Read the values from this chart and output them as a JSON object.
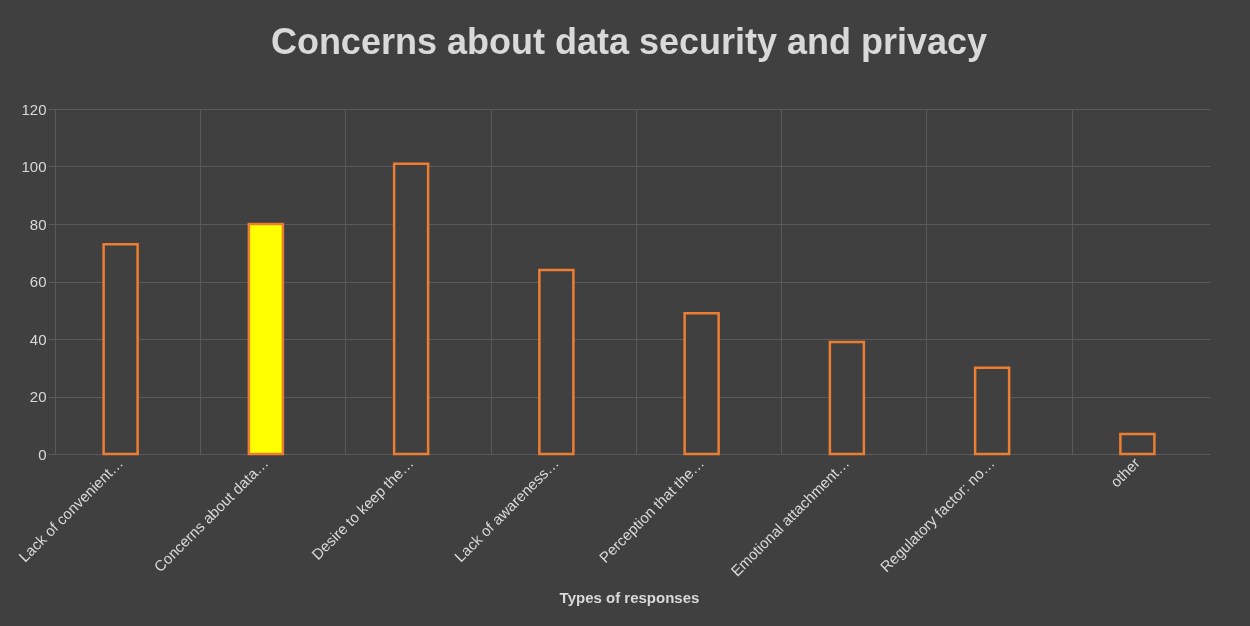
{
  "chart_data": {
    "type": "bar",
    "title": "Concerns about data security and privacy",
    "xlabel": "Types of responses",
    "categories": [
      "Lack of convenient…",
      "Concerns about data…",
      "Desire to keep the…",
      "Lack of awareness…",
      "Perception that the…",
      "Emotional attachment…",
      "Regulatory factor: no…",
      "other"
    ],
    "values": [
      73,
      80,
      101,
      64,
      49,
      39,
      30,
      7
    ],
    "colors": [
      "#404040",
      "#ffff00",
      "#404040",
      "#404040",
      "#404040",
      "#404040",
      "#404040",
      "#404040"
    ],
    "ylim": [
      0,
      120
    ],
    "yticks": [
      0,
      20,
      40,
      60,
      80,
      100,
      120
    ],
    "grid": true
  }
}
